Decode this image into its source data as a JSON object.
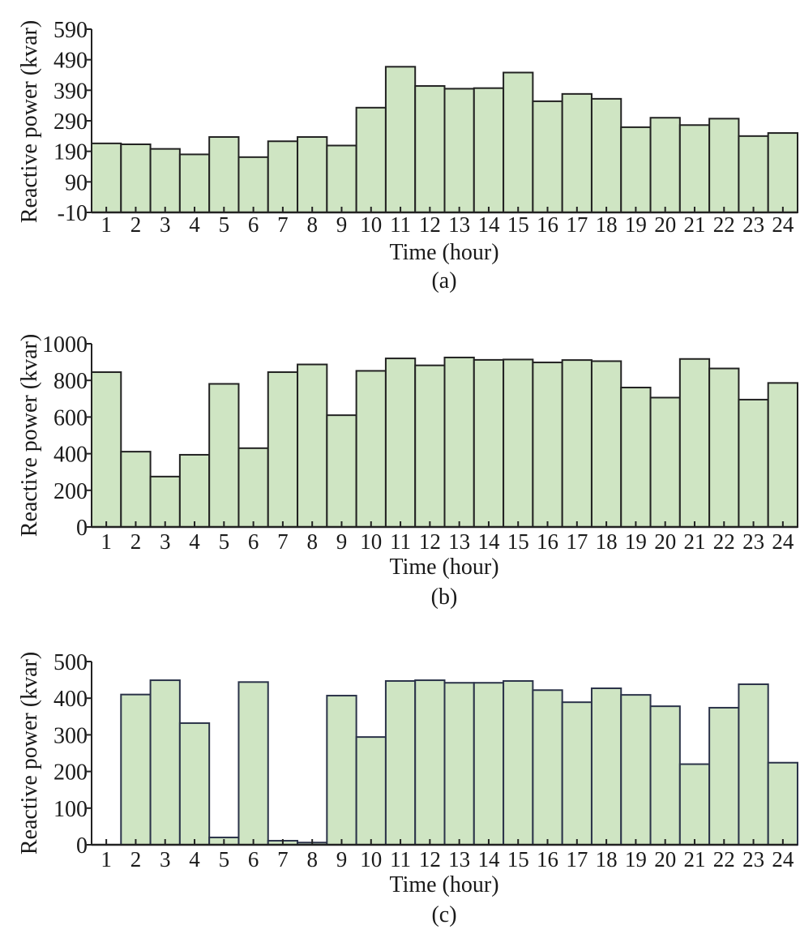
{
  "colors": {
    "fill": "#cfe5c3",
    "edge_ab": "#222222",
    "edge_c": "#2b3349",
    "axis": "#222222"
  },
  "chart_data": [
    {
      "type": "bar",
      "panel_label": "(a)",
      "xlabel": "Time (hour)",
      "ylabel": "Reactive power (kvar)",
      "categories": [
        "1",
        "2",
        "3",
        "4",
        "5",
        "6",
        "7",
        "8",
        "9",
        "10",
        "11",
        "12",
        "13",
        "14",
        "15",
        "16",
        "17",
        "18",
        "19",
        "20",
        "21",
        "22",
        "23",
        "24"
      ],
      "values": [
        216,
        213,
        198,
        180,
        237,
        171,
        223,
        237,
        209,
        333,
        467,
        404,
        395,
        397,
        448,
        354,
        378,
        362,
        269,
        300,
        276,
        297,
        240,
        250
      ],
      "ylim": [
        -10,
        590
      ],
      "yticks": [
        "-10",
        "90",
        "190",
        "290",
        "390",
        "490",
        "590"
      ],
      "grid": false
    },
    {
      "type": "bar",
      "panel_label": "(b)",
      "xlabel": "Time (hour)",
      "ylabel": "Reactive power (kvar)",
      "categories": [
        "1",
        "2",
        "3",
        "4",
        "5",
        "6",
        "7",
        "8",
        "9",
        "10",
        "11",
        "12",
        "13",
        "14",
        "15",
        "16",
        "17",
        "18",
        "19",
        "20",
        "21",
        "22",
        "23",
        "24"
      ],
      "values": [
        845,
        411,
        275,
        394,
        781,
        430,
        845,
        887,
        610,
        852,
        920,
        882,
        925,
        912,
        914,
        898,
        911,
        905,
        761,
        706,
        917,
        865,
        695,
        786
      ],
      "ylim": [
        0,
        1000
      ],
      "yticks": [
        "0",
        "200",
        "400",
        "600",
        "800",
        "1000"
      ],
      "grid": false
    },
    {
      "type": "bar",
      "panel_label": "(c)",
      "xlabel": "Time (hour)",
      "ylabel": "Reactive power (kvar)",
      "categories": [
        "1",
        "2",
        "3",
        "4",
        "5",
        "6",
        "7",
        "8",
        "9",
        "10",
        "11",
        "12",
        "13",
        "14",
        "15",
        "16",
        "17",
        "18",
        "19",
        "20",
        "21",
        "22",
        "23",
        "24"
      ],
      "values": [
        0,
        410,
        449,
        332,
        20,
        444,
        11,
        6,
        407,
        294,
        447,
        449,
        442,
        442,
        447,
        422,
        389,
        427,
        409,
        378,
        220,
        374,
        438,
        224
      ],
      "ylim": [
        0,
        500
      ],
      "yticks": [
        "0",
        "100",
        "200",
        "300",
        "400",
        "500"
      ],
      "grid": false
    }
  ]
}
